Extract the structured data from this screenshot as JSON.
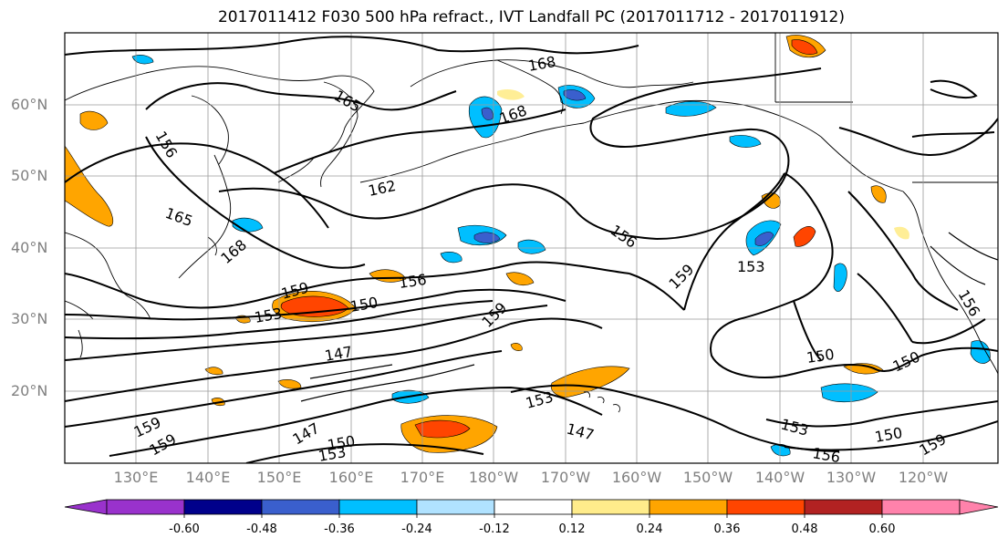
{
  "title": "2017011412 F030 500 hPa refract., IVT Landfall PC (2017011712 - 2017011912)",
  "lat_labels": [
    "60°N",
    "50°N",
    "40°N",
    "30°N",
    "20°N"
  ],
  "lon_labels": [
    "130°E",
    "140°E",
    "150°E",
    "160°E",
    "170°E",
    "180°W",
    "170°W",
    "160°W",
    "150°W",
    "140°W",
    "130°W",
    "120°W"
  ],
  "contour_labels": [
    "168",
    "168",
    "165",
    "165",
    "162",
    "168",
    "156",
    "159",
    "153",
    "156",
    "159",
    "150",
    "153",
    "147",
    "159",
    "156",
    "150",
    "150",
    "156",
    "159",
    "153",
    "147",
    "150",
    "159",
    "153",
    "147",
    "156",
    "153",
    "150",
    "159"
  ],
  "colorbar": {
    "ticks": [
      "-0.60",
      "-0.48",
      "-0.36",
      "-0.24",
      "-0.12",
      "0.12",
      "0.24",
      "0.36",
      "0.48",
      "0.60"
    ],
    "colors": [
      "#9932CC",
      "#00008B",
      "#3A5FCD",
      "#00BFFF",
      "#B0E2FF",
      "#FFFFFF",
      "#FFEC8B",
      "#FFA500",
      "#FF4500",
      "#B22222",
      "#FF82AB"
    ]
  }
}
